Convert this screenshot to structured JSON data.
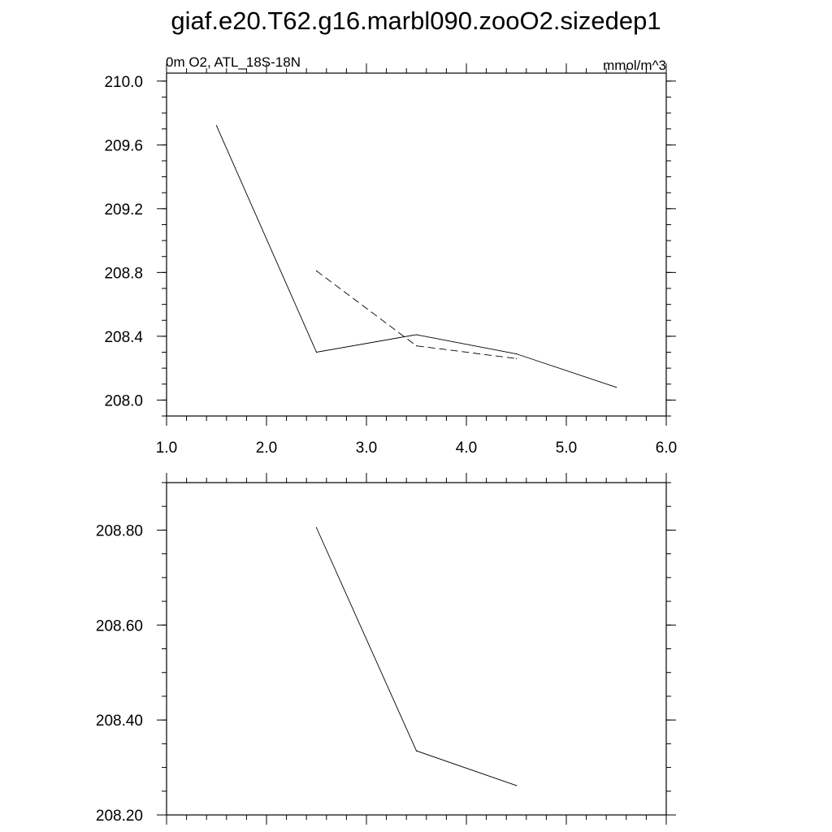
{
  "figure": {
    "title": "giaf.e20.T62.g16.marbl090.zooO2.sizedep1"
  },
  "chart_data": [
    {
      "type": "line",
      "left_label": "0m O2, ATL_18S-18N",
      "right_label": "mmol/m^3",
      "xlim": [
        1.0,
        6.0
      ],
      "ylim": [
        207.9,
        210.05
      ],
      "xticks": [
        "1.0",
        "2.0",
        "3.0",
        "4.0",
        "5.0",
        "6.0"
      ],
      "xtick_values": [
        1.0,
        2.0,
        3.0,
        4.0,
        5.0,
        6.0
      ],
      "yticks": [
        "208.0",
        "208.4",
        "208.8",
        "209.2",
        "209.6",
        "210.0"
      ],
      "ytick_values": [
        208.0,
        208.4,
        208.8,
        209.2,
        209.6,
        210.0
      ],
      "grid": false,
      "series": [
        {
          "style": "solid",
          "color": "#000000",
          "x": [
            1.5,
            2.5,
            3.5,
            4.5,
            5.5
          ],
          "y": [
            209.72,
            208.3,
            208.41,
            208.29,
            208.08
          ]
        },
        {
          "style": "dashed",
          "color": "#000000",
          "x": [
            2.5,
            3.5,
            4.5
          ],
          "y": [
            208.81,
            208.34,
            208.26
          ]
        }
      ]
    },
    {
      "type": "line",
      "xlim": [
        1.0,
        6.0
      ],
      "ylim": [
        208.2,
        208.9
      ],
      "xtick_values": [
        1.0,
        2.0,
        3.0,
        4.0,
        5.0,
        6.0
      ],
      "yticks": [
        "208.20",
        "208.40",
        "208.60",
        "208.80"
      ],
      "ytick_values": [
        208.2,
        208.4,
        208.6,
        208.8
      ],
      "grid": false,
      "series": [
        {
          "style": "solid",
          "color": "#000000",
          "x": [
            2.5,
            3.5,
            4.5
          ],
          "y": [
            208.805,
            208.335,
            208.262
          ]
        }
      ]
    }
  ]
}
